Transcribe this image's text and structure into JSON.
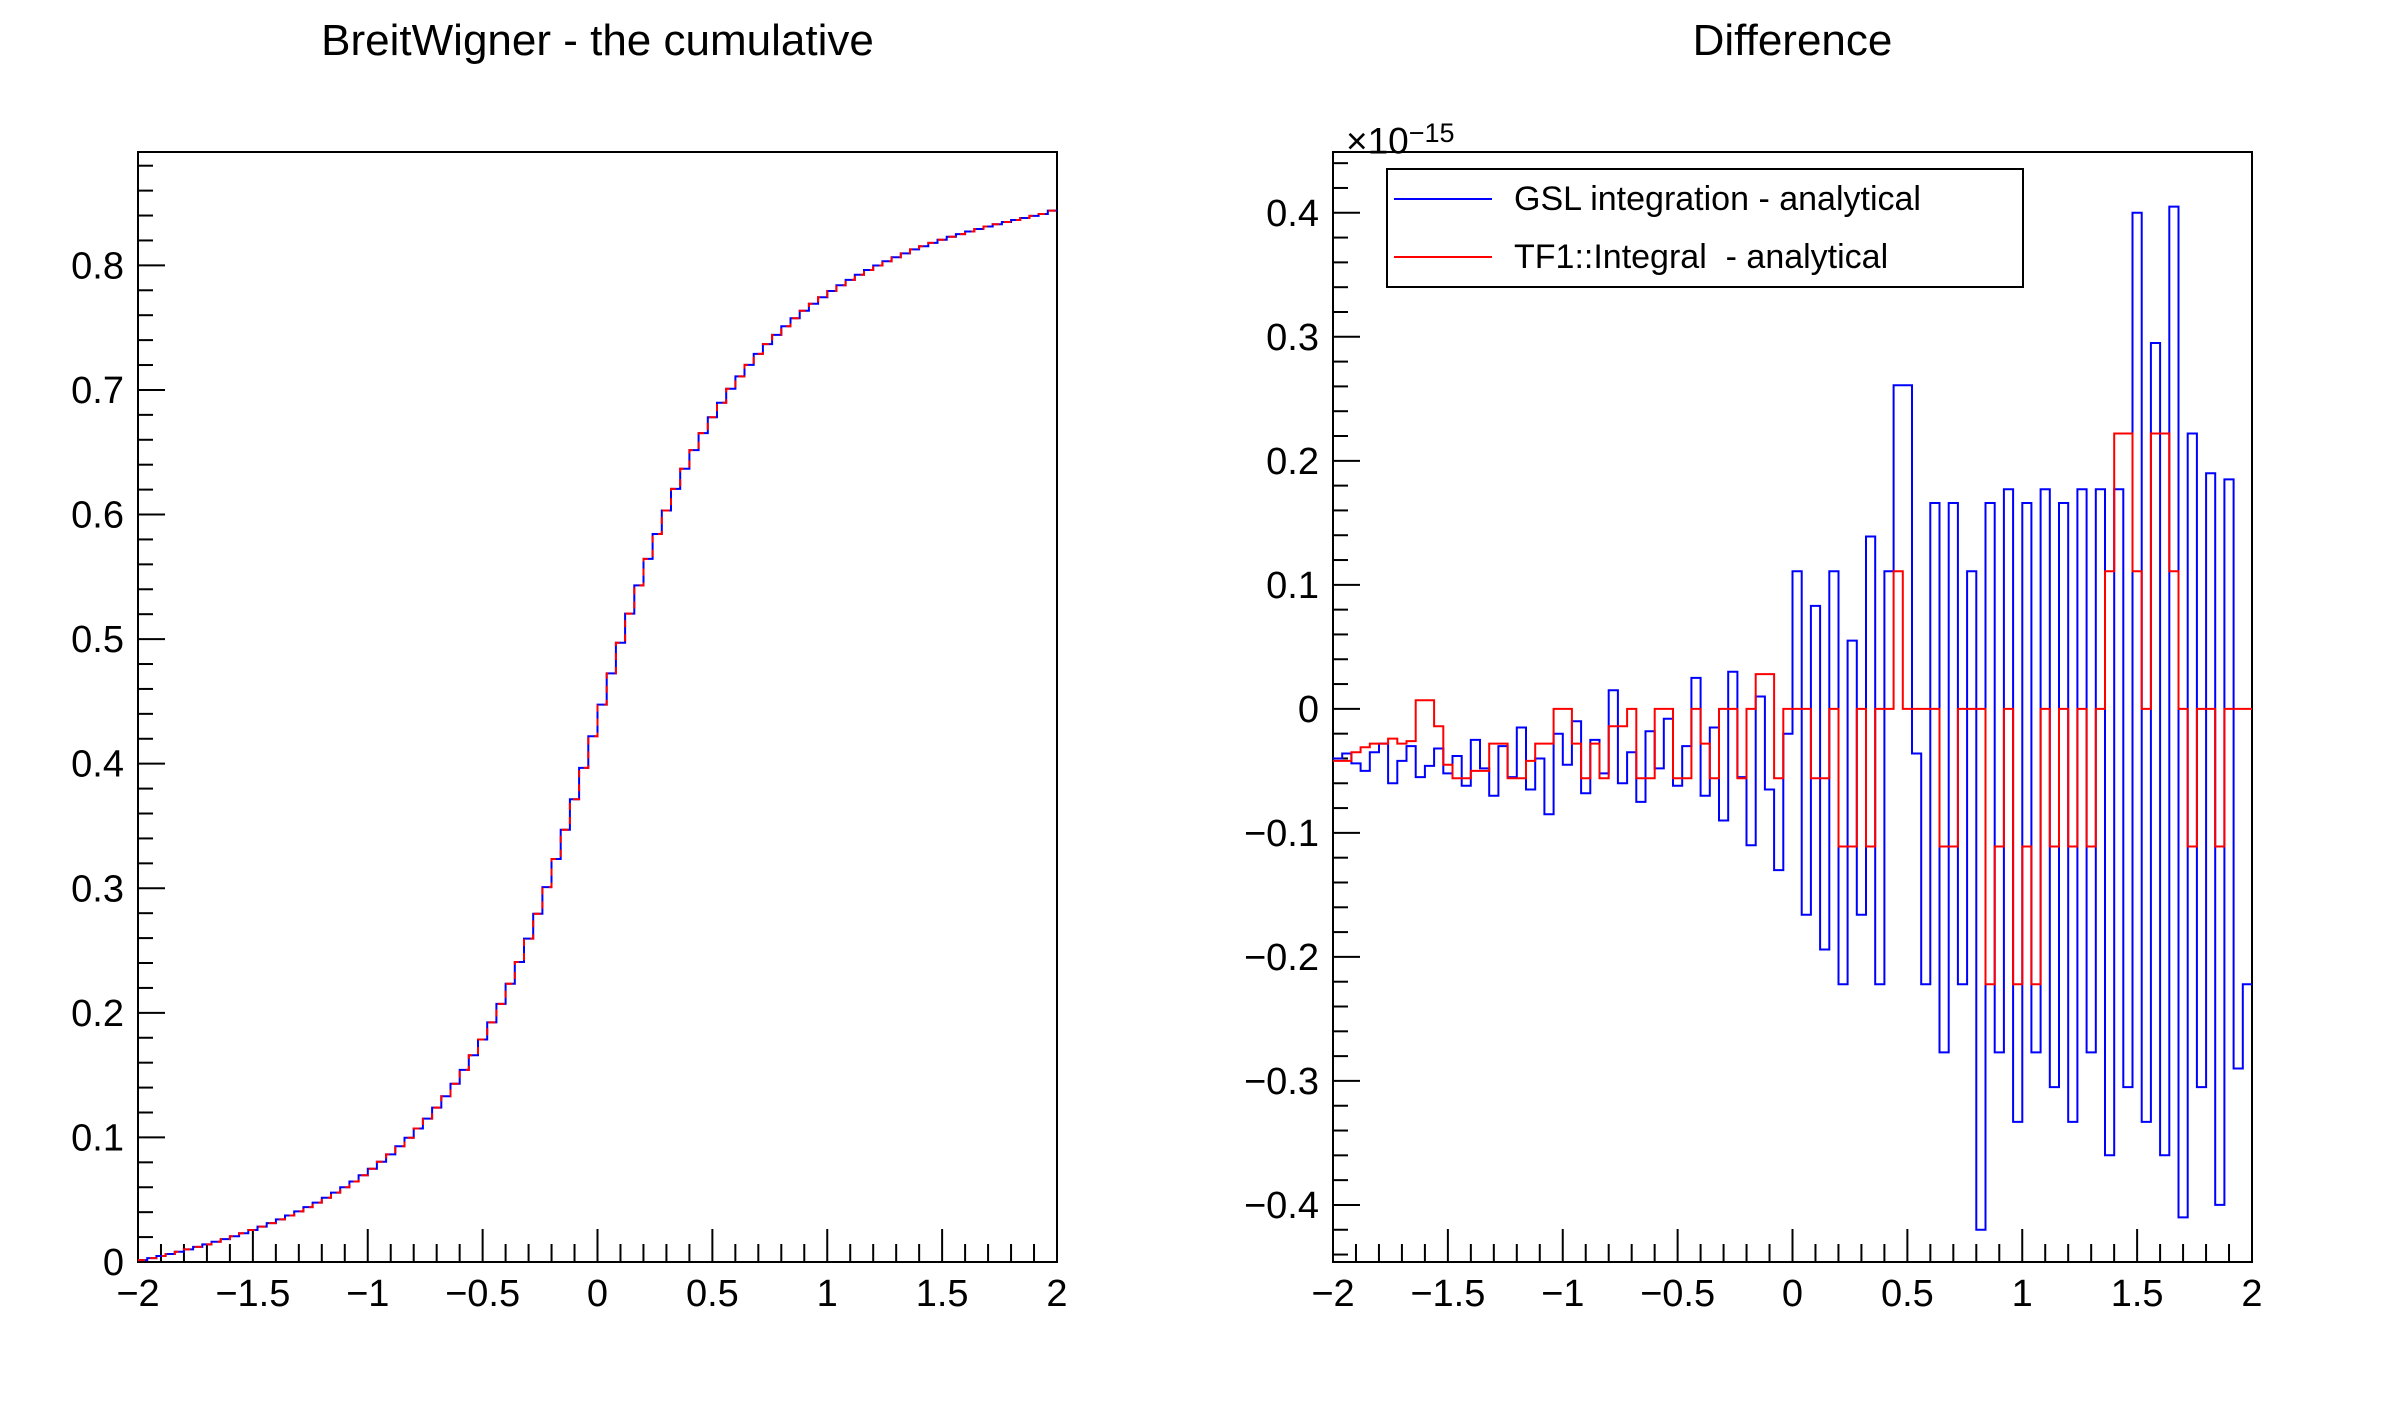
{
  "colors": {
    "gsl_blue": "#0000ff",
    "tf1_red": "#ff0000",
    "axis_black": "#000000",
    "background": "#ffffff"
  },
  "left_plot": {
    "title": "BreitWigner - the cumulative",
    "x_tick_labels": [
      "−2",
      "−1.5",
      "−1",
      "−0.5",
      "0",
      "0.5",
      "1",
      "1.5",
      "2"
    ],
    "y_tick_labels": [
      "0",
      "0.1",
      "0.2",
      "0.3",
      "0.4",
      "0.5",
      "0.6",
      "0.7",
      "0.8"
    ]
  },
  "right_plot": {
    "title": "Difference",
    "exponent_base": "×10",
    "exponent_power": "−15",
    "x_tick_labels": [
      "−2",
      "−1.5",
      "−1",
      "−0.5",
      "0",
      "0.5",
      "1",
      "1.5",
      "2"
    ],
    "y_tick_labels": [
      "−0.4",
      "−0.3",
      "−0.2",
      "−0.1",
      "0",
      "0.1",
      "0.2",
      "0.3",
      "0.4"
    ],
    "legend": [
      {
        "label": "GSL integration - analytical",
        "color": "#0000ff"
      },
      {
        "label": "TF1::Integral  - analytical",
        "color": "#ff0000"
      }
    ]
  },
  "chart_data": [
    {
      "type": "line",
      "style": "step-histogram",
      "title": "BreitWigner - the cumulative",
      "x_start": -2,
      "bin_width": 0.04,
      "n_bins": 100,
      "xlim": [
        -2,
        2
      ],
      "ylim": [
        0,
        0.891
      ],
      "x_major_step": 0.5,
      "x_minor_step": 0.1,
      "y_major_step": 0.1,
      "y_minor_step": 0.02,
      "grid": false,
      "series": [
        {
          "name": "BreitWigner cumulative (blue with red dashes)",
          "colors": [
            "#0000ff",
            "#ff0000"
          ],
          "values": [
            0.0015,
            0.0031,
            0.0048,
            0.0064,
            0.0083,
            0.0101,
            0.0121,
            0.0141,
            0.0162,
            0.0184,
            0.0207,
            0.0231,
            0.0257,
            0.0284,
            0.0312,
            0.0342,
            0.0373,
            0.0406,
            0.0441,
            0.0477,
            0.0515,
            0.0557,
            0.06,
            0.0646,
            0.0696,
            0.0748,
            0.0804,
            0.0864,
            0.0929,
            0.0998,
            0.1072,
            0.1151,
            0.1239,
            0.1331,
            0.1431,
            0.1542,
            0.1659,
            0.1786,
            0.1923,
            0.2072,
            0.2234,
            0.2408,
            0.2596,
            0.2796,
            0.3009,
            0.3235,
            0.347,
            0.3715,
            0.3966,
            0.422,
            0.4474,
            0.4725,
            0.497,
            0.5205,
            0.5431,
            0.5644,
            0.5844,
            0.6032,
            0.6206,
            0.6367,
            0.6517,
            0.6654,
            0.6781,
            0.6898,
            0.7009,
            0.7109,
            0.7201,
            0.7289,
            0.7368,
            0.7442,
            0.7511,
            0.7576,
            0.7636,
            0.7692,
            0.7744,
            0.7794,
            0.784,
            0.7883,
            0.7925,
            0.7963,
            0.7999,
            0.8033,
            0.8065,
            0.8096,
            0.8128,
            0.8153,
            0.818,
            0.8205,
            0.8229,
            0.8251,
            0.8272,
            0.8292,
            0.8312,
            0.833,
            0.8348,
            0.8364,
            0.838,
            0.8397,
            0.8412,
            0.844
          ]
        }
      ]
    },
    {
      "type": "line",
      "style": "step-histogram",
      "title": "Difference",
      "y_scale_factor": "×10^−15",
      "x_start": -2,
      "bin_width": 0.04,
      "n_bins": 100,
      "xlim": [
        -2,
        2
      ],
      "ylim": [
        -0.446,
        0.449
      ],
      "x_major_step": 0.5,
      "x_minor_step": 0.1,
      "y_major_step": 0.1,
      "y_minor_step": 0.02,
      "grid": false,
      "legend_position": "top-left",
      "series": [
        {
          "name": "GSL integration - analytical",
          "color": "#0000ff",
          "values": [
            -0.04,
            -0.036,
            -0.044,
            -0.05,
            -0.035,
            -0.028,
            -0.06,
            -0.042,
            -0.03,
            -0.055,
            -0.046,
            -0.032,
            -0.052,
            -0.038,
            -0.062,
            -0.025,
            -0.048,
            -0.07,
            -0.03,
            -0.055,
            -0.015,
            -0.065,
            -0.04,
            -0.085,
            -0.02,
            -0.045,
            -0.01,
            -0.068,
            -0.025,
            -0.052,
            0.015,
            -0.06,
            -0.035,
            -0.075,
            -0.018,
            -0.048,
            -0.008,
            -0.062,
            -0.03,
            0.025,
            -0.07,
            -0.015,
            -0.09,
            0.03,
            -0.055,
            -0.11,
            0.01,
            -0.065,
            -0.13,
            -0.02,
            0.111,
            -0.166,
            0.083,
            -0.194,
            0.111,
            -0.222,
            0.055,
            -0.166,
            0.139,
            -0.222,
            0.111,
            0.261,
            0.261,
            -0.036,
            -0.222,
            0.166,
            -0.277,
            0.166,
            -0.222,
            0.111,
            -0.42,
            0.166,
            -0.277,
            0.177,
            -0.333,
            0.166,
            -0.277,
            0.177,
            -0.305,
            0.166,
            -0.333,
            0.177,
            -0.277,
            0.177,
            -0.36,
            0.177,
            -0.305,
            0.4,
            -0.333,
            0.295,
            -0.36,
            0.405,
            -0.41,
            0.222,
            -0.305,
            0.19,
            -0.4,
            0.185,
            -0.29,
            -0.222
          ]
        },
        {
          "name": "TF1::Integral  - analytical",
          "color": "#ff0000",
          "values": [
            -0.042,
            -0.042,
            -0.035,
            -0.031,
            -0.028,
            -0.028,
            -0.024,
            -0.028,
            -0.026,
            0.007,
            0.007,
            -0.014,
            -0.045,
            -0.056,
            -0.056,
            -0.05,
            -0.05,
            -0.028,
            -0.028,
            -0.056,
            -0.056,
            -0.042,
            -0.028,
            -0.028,
            0.0,
            0.0,
            -0.028,
            -0.056,
            -0.028,
            -0.056,
            -0.014,
            -0.014,
            0.0,
            -0.056,
            -0.056,
            0.0,
            0.0,
            -0.056,
            -0.056,
            0.0,
            -0.028,
            -0.056,
            0.0,
            0.0,
            -0.056,
            0.0,
            0.028,
            0.028,
            -0.056,
            0.0,
            0.0,
            0.0,
            -0.056,
            -0.056,
            0.0,
            -0.111,
            -0.111,
            0.0,
            -0.111,
            0.0,
            0.0,
            0.111,
            0.0,
            0.0,
            0.0,
            0.0,
            -0.111,
            -0.111,
            0.0,
            0.0,
            0.0,
            -0.222,
            -0.111,
            0.0,
            -0.222,
            -0.111,
            -0.222,
            0.0,
            -0.111,
            0.0,
            -0.111,
            0.0,
            -0.111,
            0.0,
            0.111,
            0.222,
            0.222,
            0.111,
            0.0,
            0.222,
            0.222,
            0.111,
            0.0,
            -0.111,
            0.0,
            0.0,
            -0.111,
            0.0,
            0.0,
            0.0
          ]
        }
      ]
    }
  ]
}
